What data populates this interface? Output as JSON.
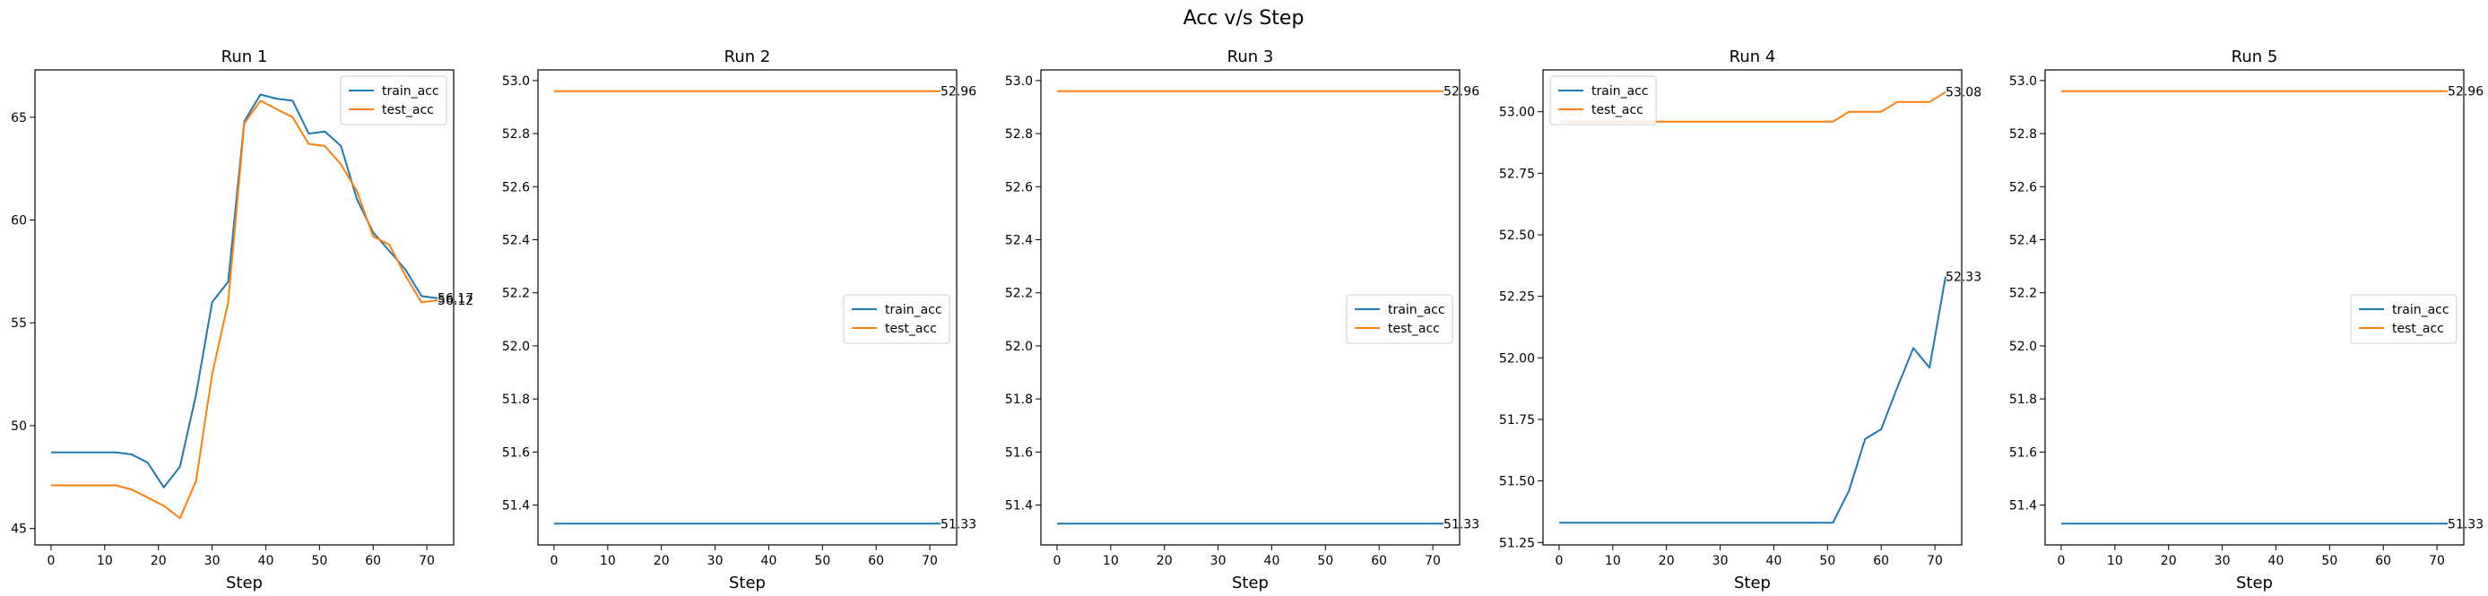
{
  "figure": {
    "title": "Acc v/s Step"
  },
  "colors": {
    "train_acc": "#1f77b4",
    "test_acc": "#ff7f0e"
  },
  "chart_data": [
    {
      "type": "line",
      "title": "Run 1",
      "xlabel": "Step",
      "ylabel": "",
      "xlim": [
        -3,
        75
      ],
      "ylim": [
        44.2,
        67.3
      ],
      "xticks": [
        0,
        10,
        20,
        30,
        40,
        50,
        60,
        70
      ],
      "yticks": [
        45,
        50,
        55,
        60,
        65
      ],
      "ytick_labels": [
        "45",
        "50",
        "55",
        "60",
        "65"
      ],
      "legend": "top-right",
      "grid": false,
      "series": [
        {
          "name": "train_acc",
          "x": [
            0,
            3,
            6,
            9,
            12,
            15,
            18,
            21,
            24,
            27,
            30,
            33,
            36,
            39,
            42,
            45,
            48,
            51,
            54,
            57,
            60,
            63,
            66,
            69,
            72
          ],
          "y": [
            48.7,
            48.7,
            48.7,
            48.7,
            48.7,
            48.6,
            48.2,
            47.0,
            48.0,
            51.5,
            56.0,
            57.0,
            64.8,
            66.1,
            65.9,
            65.8,
            64.2,
            64.3,
            63.6,
            61.0,
            59.4,
            58.5,
            57.6,
            56.3,
            56.2
          ]
        },
        {
          "name": "test_acc",
          "x": [
            0,
            3,
            6,
            9,
            12,
            15,
            18,
            21,
            24,
            27,
            30,
            33,
            36,
            39,
            42,
            45,
            48,
            51,
            54,
            57,
            60,
            63,
            66,
            69,
            72
          ],
          "y": [
            47.1,
            47.1,
            47.1,
            47.1,
            47.1,
            46.9,
            46.5,
            46.1,
            45.5,
            47.3,
            52.5,
            56.0,
            64.7,
            65.8,
            65.4,
            65.0,
            63.7,
            63.6,
            62.7,
            61.4,
            59.2,
            58.8,
            57.3,
            56.0,
            56.1
          ]
        }
      ],
      "end_labels": [
        {
          "series": "train_acc",
          "text": "56.17"
        },
        {
          "series": "test_acc",
          "text": "56.12"
        }
      ]
    },
    {
      "type": "line",
      "title": "Run 2",
      "xlabel": "Step",
      "ylabel": "",
      "xlim": [
        -3,
        75
      ],
      "ylim": [
        51.25,
        53.04
      ],
      "xticks": [
        0,
        10,
        20,
        30,
        40,
        50,
        60,
        70
      ],
      "yticks": [
        51.4,
        51.6,
        51.8,
        52.0,
        52.2,
        52.4,
        52.6,
        52.8,
        53.0
      ],
      "ytick_labels": [
        "51.4",
        "51.6",
        "51.8",
        "52.0",
        "52.2",
        "52.4",
        "52.6",
        "52.8",
        "53.0"
      ],
      "legend": "center-right",
      "grid": false,
      "series": [
        {
          "name": "train_acc",
          "x": [
            0,
            72
          ],
          "y": [
            51.33,
            51.33
          ]
        },
        {
          "name": "test_acc",
          "x": [
            0,
            72
          ],
          "y": [
            52.96,
            52.96
          ]
        }
      ],
      "end_labels": [
        {
          "series": "test_acc",
          "text": "52.96"
        },
        {
          "series": "train_acc",
          "text": "51.33"
        }
      ]
    },
    {
      "type": "line",
      "title": "Run 3",
      "xlabel": "Step",
      "ylabel": "",
      "xlim": [
        -3,
        75
      ],
      "ylim": [
        51.25,
        53.04
      ],
      "xticks": [
        0,
        10,
        20,
        30,
        40,
        50,
        60,
        70
      ],
      "yticks": [
        51.4,
        51.6,
        51.8,
        52.0,
        52.2,
        52.4,
        52.6,
        52.8,
        53.0
      ],
      "ytick_labels": [
        "51.4",
        "51.6",
        "51.8",
        "52.0",
        "52.2",
        "52.4",
        "52.6",
        "52.8",
        "53.0"
      ],
      "legend": "center-right",
      "grid": false,
      "series": [
        {
          "name": "train_acc",
          "x": [
            0,
            72
          ],
          "y": [
            51.33,
            51.33
          ]
        },
        {
          "name": "test_acc",
          "x": [
            0,
            72
          ],
          "y": [
            52.96,
            52.96
          ]
        }
      ],
      "end_labels": [
        {
          "series": "test_acc",
          "text": "52.96"
        },
        {
          "series": "train_acc",
          "text": "51.33"
        }
      ]
    },
    {
      "type": "line",
      "title": "Run 4",
      "xlabel": "Step",
      "ylabel": "",
      "xlim": [
        -3,
        75
      ],
      "ylim": [
        51.24,
        53.17
      ],
      "xticks": [
        0,
        10,
        20,
        30,
        40,
        50,
        60,
        70
      ],
      "yticks": [
        51.25,
        51.5,
        51.75,
        52.0,
        52.25,
        52.5,
        52.75,
        53.0
      ],
      "ytick_labels": [
        "51.25",
        "51.50",
        "51.75",
        "52.00",
        "52.25",
        "52.50",
        "52.75",
        "53.00"
      ],
      "legend": "top-left",
      "grid": false,
      "series": [
        {
          "name": "train_acc",
          "x": [
            0,
            51,
            54,
            57,
            60,
            63,
            66,
            69,
            72
          ],
          "y": [
            51.33,
            51.33,
            51.46,
            51.67,
            51.71,
            51.88,
            52.04,
            51.96,
            52.33
          ]
        },
        {
          "name": "test_acc",
          "x": [
            0,
            51,
            54,
            57,
            60,
            63,
            66,
            69,
            72
          ],
          "y": [
            52.96,
            52.96,
            53.0,
            53.0,
            53.0,
            53.04,
            53.04,
            53.04,
            53.08
          ]
        }
      ],
      "end_labels": [
        {
          "series": "test_acc",
          "text": "53.08"
        },
        {
          "series": "train_acc",
          "text": "52.33"
        }
      ]
    },
    {
      "type": "line",
      "title": "Run 5",
      "xlabel": "Step",
      "ylabel": "",
      "xlim": [
        -3,
        75
      ],
      "ylim": [
        51.25,
        53.04
      ],
      "xticks": [
        0,
        10,
        20,
        30,
        40,
        50,
        60,
        70
      ],
      "yticks": [
        51.4,
        51.6,
        51.8,
        52.0,
        52.2,
        52.4,
        52.6,
        52.8,
        53.0
      ],
      "ytick_labels": [
        "51.4",
        "51.6",
        "51.8",
        "52.0",
        "52.2",
        "52.4",
        "52.6",
        "52.8",
        "53.0"
      ],
      "legend": "center-right",
      "grid": false,
      "series": [
        {
          "name": "train_acc",
          "x": [
            0,
            72
          ],
          "y": [
            51.33,
            51.33
          ]
        },
        {
          "name": "test_acc",
          "x": [
            0,
            72
          ],
          "y": [
            52.96,
            52.96
          ]
        }
      ],
      "end_labels": [
        {
          "series": "test_acc",
          "text": "52.96"
        },
        {
          "series": "train_acc",
          "text": "51.33"
        }
      ]
    }
  ]
}
